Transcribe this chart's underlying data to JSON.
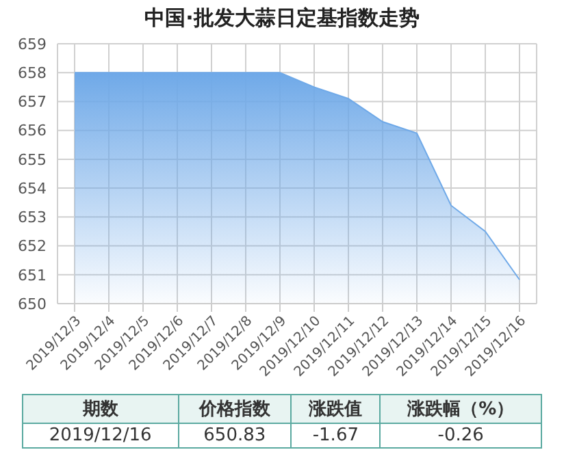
{
  "chart_data": {
    "type": "area",
    "title": "中国·批发大蒜日定基指数走势",
    "categories": [
      "2019/12/3",
      "2019/12/4",
      "2019/12/5",
      "2019/12/6",
      "2019/12/7",
      "2019/12/8",
      "2019/12/9",
      "2019/12/10",
      "2019/12/11",
      "2019/12/12",
      "2019/12/13",
      "2019/12/14",
      "2019/12/15",
      "2019/12/16"
    ],
    "series": [
      {
        "color": "#6fa9e8",
        "values": [
          658,
          658,
          658,
          658,
          658,
          658,
          658,
          657.5,
          657.1,
          656.3,
          655.9,
          653.4,
          652.5,
          650.83
        ]
      }
    ],
    "ylim": [
      650,
      659
    ],
    "yticks": [
      650,
      651,
      652,
      653,
      654,
      655,
      656,
      657,
      658,
      659
    ],
    "grid": true,
    "annotations": [
      "期数",
      "价格指数",
      "涨跌值",
      "涨跌幅（%）",
      "2019/12/16",
      "650.83",
      "-1.67",
      "-0.26"
    ]
  }
}
